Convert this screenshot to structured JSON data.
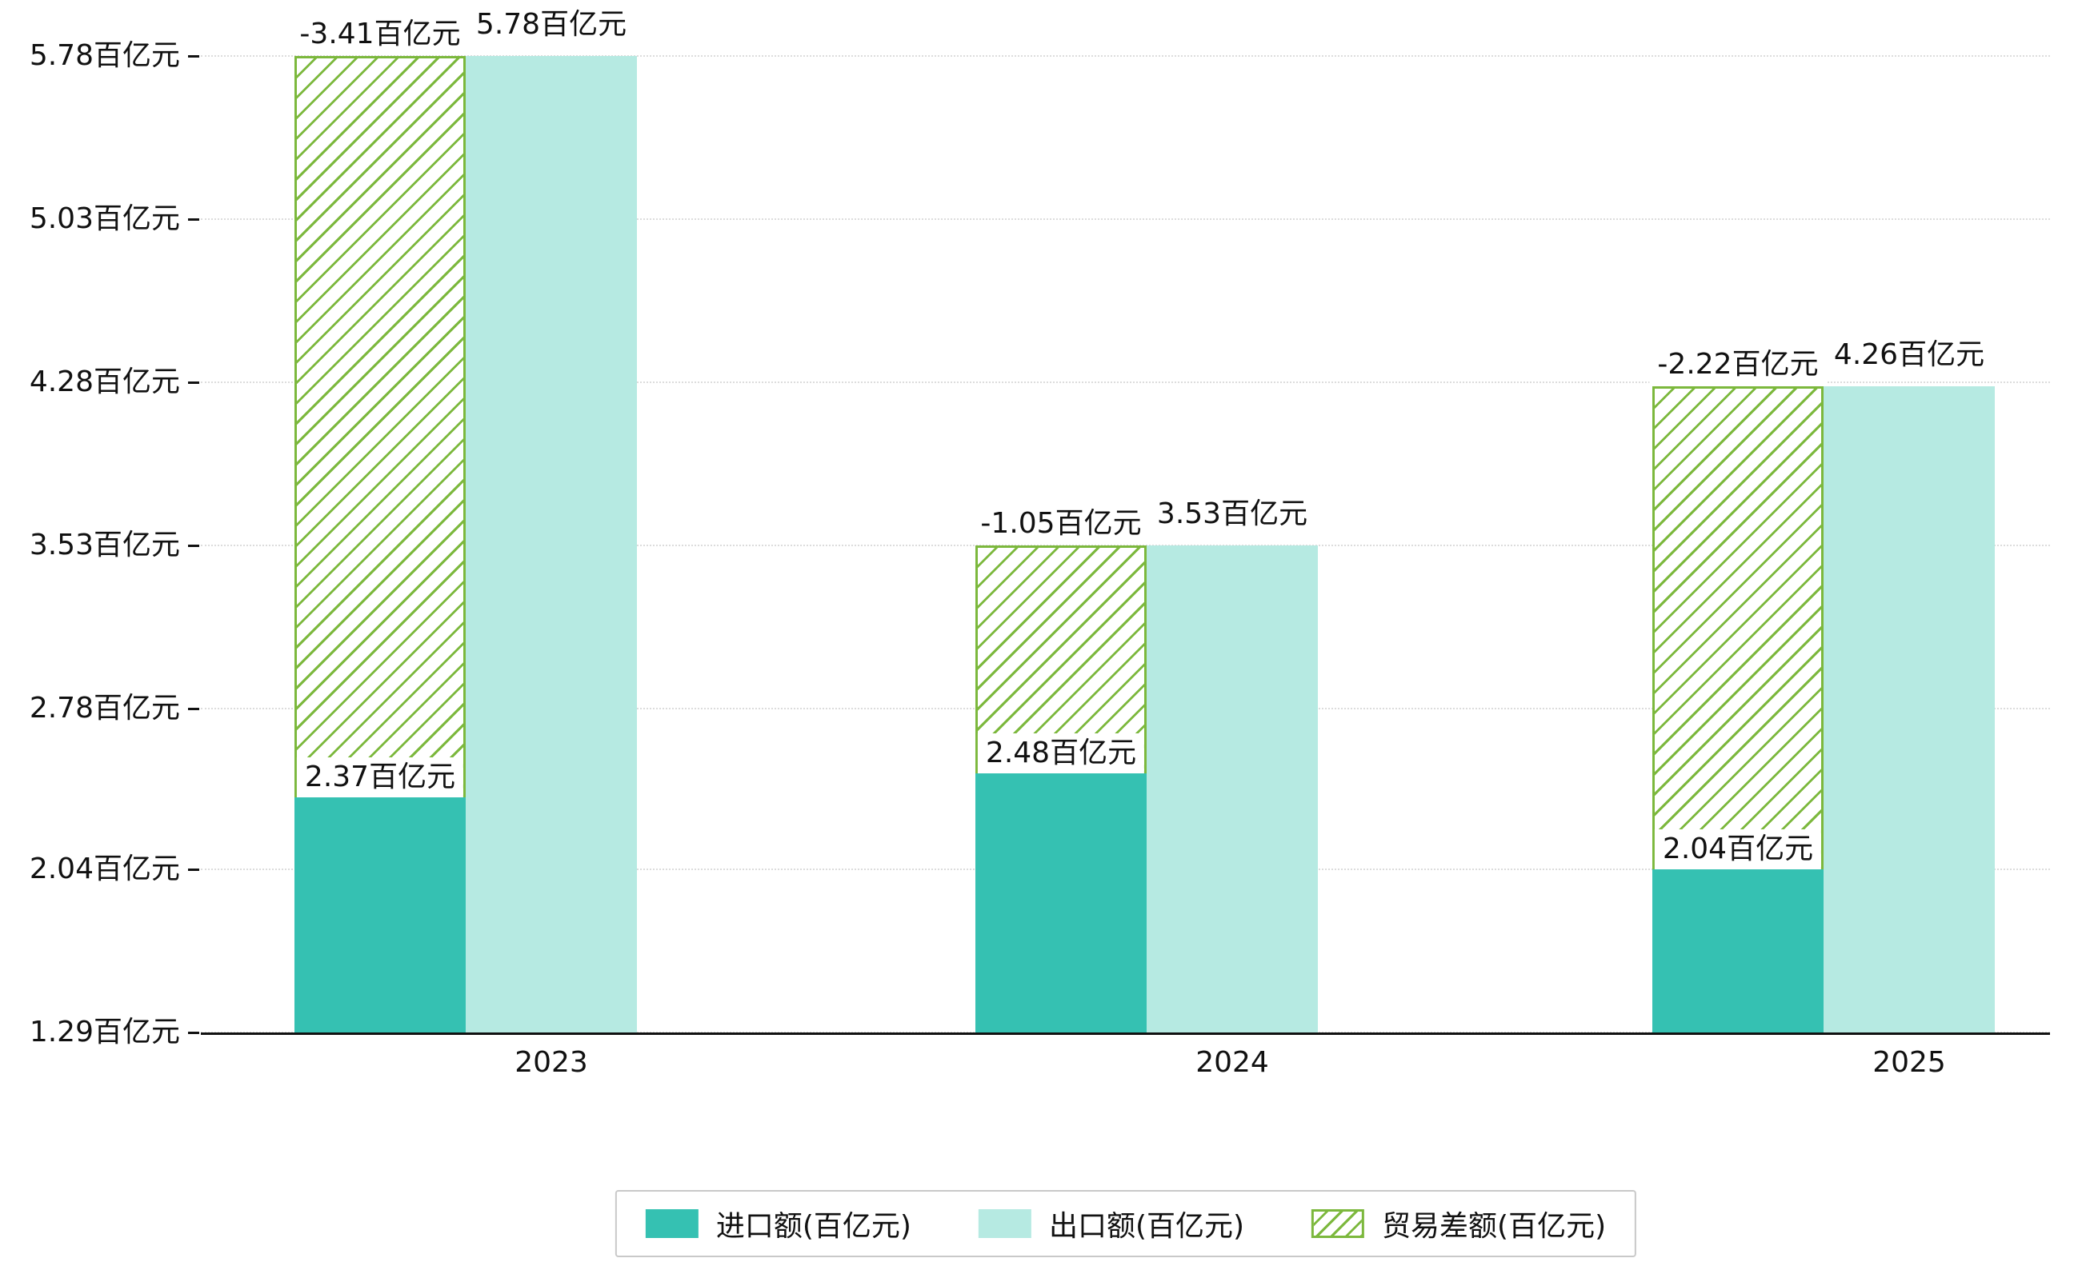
{
  "chart_data": {
    "type": "bar",
    "title": "",
    "categories": [
      "2023",
      "2024",
      "2025"
    ],
    "series": [
      {
        "name": "进口额(百亿元)",
        "values": [
          2.37,
          2.48,
          2.04
        ],
        "data_labels": [
          "2.37百亿元",
          "2.48百亿元",
          "2.04百亿元"
        ],
        "color": "#35c1b2",
        "style": "solid"
      },
      {
        "name": "出口额(百亿元)",
        "values": [
          5.78,
          3.53,
          4.26
        ],
        "data_labels": [
          "5.78百亿元",
          "3.53百亿元",
          "4.26百亿元"
        ],
        "color": "#b6eae2",
        "style": "solid"
      },
      {
        "name": "贸易差额(百亿元)",
        "values": [
          -3.41,
          -1.05,
          -2.22
        ],
        "data_labels": [
          "-3.41百亿元",
          "-1.05百亿元",
          "-2.22百亿元"
        ],
        "color": "#7cb83d",
        "style": "hatched"
      }
    ],
    "y_axis": {
      "min": 1.29,
      "tick_values": [
        5.78,
        5.03,
        4.28,
        3.53,
        2.78,
        2.04,
        1.29
      ],
      "tick_labels": [
        "5.78百亿元",
        "5.03百亿元",
        "4.28百亿元",
        "3.53百亿元",
        "2.78百亿元",
        "2.04百亿元",
        "1.29百亿元"
      ]
    },
    "x_axis": {
      "tick_labels": [
        "2023",
        "2024",
        "2025"
      ]
    },
    "grid": "horizontal-dotted",
    "legend_position": "bottom",
    "colors": {
      "background": "#ffffff",
      "text": "#111111",
      "grid": "#dcdcdc",
      "axis": "#111111",
      "label_background": "#ffffff",
      "legend_border": "#c9c9c9"
    }
  }
}
